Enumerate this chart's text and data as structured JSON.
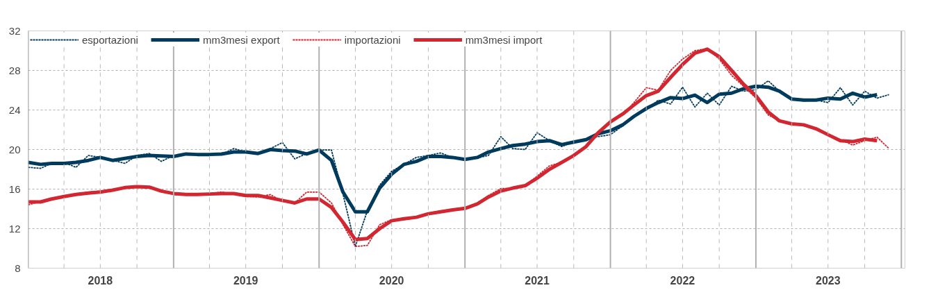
{
  "chart_data": {
    "type": "line",
    "x": [
      "2018-01",
      "2018-02",
      "2018-03",
      "2018-04",
      "2018-05",
      "2018-06",
      "2018-07",
      "2018-08",
      "2018-09",
      "2018-10",
      "2018-11",
      "2018-12",
      "2019-01",
      "2019-02",
      "2019-03",
      "2019-04",
      "2019-05",
      "2019-06",
      "2019-07",
      "2019-08",
      "2019-09",
      "2019-10",
      "2019-11",
      "2019-12",
      "2020-01",
      "2020-02",
      "2020-03",
      "2020-04",
      "2020-05",
      "2020-06",
      "2020-07",
      "2020-08",
      "2020-09",
      "2020-10",
      "2020-11",
      "2020-12",
      "2021-01",
      "2021-02",
      "2021-03",
      "2021-04",
      "2021-05",
      "2021-06",
      "2021-07",
      "2021-08",
      "2021-09",
      "2021-10",
      "2021-11",
      "2021-12",
      "2022-01",
      "2022-02",
      "2022-03",
      "2022-04",
      "2022-05",
      "2022-06",
      "2022-07",
      "2022-08",
      "2022-09",
      "2022-10",
      "2022-11",
      "2022-12",
      "2023-01",
      "2023-02",
      "2023-03",
      "2023-04",
      "2023-05",
      "2023-06",
      "2023-07",
      "2023-08",
      "2023-09",
      "2023-10",
      "2023-11",
      "2023-12"
    ],
    "series": [
      {
        "name": "esportazioni",
        "color": "#003a5c",
        "line_style": "dashed",
        "values": [
          18.2,
          18.1,
          18.6,
          18.7,
          18.2,
          19.4,
          19.2,
          18.9,
          18.6,
          19.4,
          19.6,
          18.8,
          19.4,
          19.5,
          19.45,
          19.45,
          19.5,
          20.1,
          19.75,
          19.6,
          20.1,
          20.7,
          19.05,
          19.6,
          19.95,
          19.95,
          15.5,
          10.2,
          13.8,
          16.4,
          17.8,
          18.5,
          19.2,
          19.4,
          19.65,
          19.2,
          19.0,
          19.15,
          19.4,
          21.3,
          20.1,
          20.0,
          21.7,
          20.9,
          20.3,
          20.8,
          21.1,
          21.3,
          21.5,
          22.4,
          23.35,
          24.0,
          25.0,
          24.6,
          26.3,
          24.3,
          25.7,
          24.5,
          26.4,
          25.9,
          26.05,
          26.95,
          25.9,
          25.2,
          24.9,
          25.0,
          24.75,
          26.25,
          24.5,
          25.9,
          25.2,
          25.55
        ]
      },
      {
        "name": "mm3mesi export",
        "color": "#003a5c",
        "line_style": "solid",
        "values": [
          18.7,
          18.5,
          18.6,
          18.6,
          18.7,
          18.9,
          19.2,
          18.9,
          19.1,
          19.3,
          19.4,
          19.35,
          19.3,
          19.55,
          19.5,
          19.5,
          19.55,
          19.75,
          19.75,
          19.6,
          20.0,
          19.9,
          19.85,
          19.55,
          19.95,
          18.9,
          15.7,
          13.7,
          13.7,
          16.1,
          17.5,
          18.5,
          18.8,
          19.3,
          19.3,
          19.2,
          19.0,
          19.2,
          19.75,
          20.1,
          20.4,
          20.55,
          20.8,
          20.9,
          20.5,
          20.75,
          21.0,
          21.6,
          21.9,
          22.5,
          23.35,
          24.15,
          24.75,
          25.25,
          25.15,
          25.5,
          24.75,
          25.6,
          25.7,
          26.15,
          26.4,
          26.3,
          25.9,
          25.1,
          25.0,
          25.0,
          25.2,
          25.1,
          25.7,
          25.3,
          25.55,
          null
        ]
      },
      {
        "name": "importazioni",
        "color": "#d22630",
        "line_style": "dashed",
        "values": [
          14.4,
          14.75,
          15.0,
          15.2,
          15.45,
          15.7,
          15.8,
          15.9,
          16.25,
          16.25,
          16.15,
          15.9,
          15.45,
          15.4,
          15.45,
          15.55,
          15.7,
          15.5,
          15.25,
          15.2,
          15.45,
          14.75,
          14.6,
          15.7,
          15.7,
          14.6,
          12.4,
          10.2,
          10.3,
          12.4,
          12.9,
          12.9,
          13.1,
          13.55,
          13.8,
          13.9,
          14.05,
          14.6,
          15.35,
          16.05,
          16.1,
          16.35,
          17.3,
          18.35,
          18.7,
          19.5,
          20.3,
          21.7,
          22.8,
          23.5,
          24.75,
          26.25,
          26.0,
          28.0,
          29.15,
          30.0,
          30.2,
          29.15,
          27.5,
          26.4,
          25.2,
          23.5,
          22.9,
          22.6,
          22.4,
          22.1,
          21.5,
          21.0,
          20.45,
          20.9,
          21.25,
          20.1
        ]
      },
      {
        "name": "mm3mesi import",
        "color": "#d22630",
        "line_style": "solid",
        "values": [
          14.7,
          14.7,
          15.0,
          15.25,
          15.45,
          15.6,
          15.7,
          15.9,
          16.15,
          16.25,
          16.2,
          15.8,
          15.55,
          15.45,
          15.45,
          15.5,
          15.55,
          15.55,
          15.35,
          15.35,
          15.1,
          14.85,
          14.6,
          15.0,
          15.0,
          14.15,
          12.65,
          10.9,
          11.0,
          12.0,
          12.8,
          13.0,
          13.15,
          13.5,
          13.7,
          13.9,
          14.05,
          14.5,
          15.2,
          15.8,
          16.1,
          16.35,
          17.1,
          18.0,
          18.7,
          19.4,
          20.3,
          21.7,
          22.8,
          23.6,
          24.5,
          25.45,
          25.9,
          27.3,
          28.6,
          29.75,
          30.15,
          29.4,
          28.0,
          26.6,
          25.45,
          23.8,
          22.9,
          22.6,
          22.5,
          22.1,
          21.5,
          20.9,
          20.8,
          21.05,
          20.9,
          null
        ]
      }
    ],
    "xlim": [
      "2018-01-01",
      "2024-01-10"
    ],
    "xticks": [
      {
        "value": "2018-01-01",
        "label": null
      },
      {
        "value": "2018-04-01",
        "label": null
      },
      {
        "value": "2018-07-01",
        "label": "2018"
      },
      {
        "value": "2018-10-01",
        "label": null
      },
      {
        "value": "2019-01-01",
        "label": null
      },
      {
        "value": "2019-04-01",
        "label": null
      },
      {
        "value": "2019-07-01",
        "label": "2019"
      },
      {
        "value": "2019-10-01",
        "label": null
      },
      {
        "value": "2020-01-01",
        "label": null
      },
      {
        "value": "2020-04-01",
        "label": null
      },
      {
        "value": "2020-07-01",
        "label": "2020"
      },
      {
        "value": "2020-10-01",
        "label": null
      },
      {
        "value": "2021-01-01",
        "label": null
      },
      {
        "value": "2021-04-01",
        "label": null
      },
      {
        "value": "2021-07-01",
        "label": "2021"
      },
      {
        "value": "2021-10-01",
        "label": null
      },
      {
        "value": "2022-01-01",
        "label": null
      },
      {
        "value": "2022-04-01",
        "label": null
      },
      {
        "value": "2022-07-01",
        "label": "2022"
      },
      {
        "value": "2022-10-01",
        "label": null
      },
      {
        "value": "2023-01-01",
        "label": null
      },
      {
        "value": "2023-04-01",
        "label": null
      },
      {
        "value": "2023-07-01",
        "label": "2023"
      },
      {
        "value": "2023-10-01",
        "label": null
      },
      {
        "value": "2024-01-01",
        "label": null
      }
    ],
    "ylim": [
      8,
      32
    ],
    "yticks": [
      8,
      12,
      16,
      20,
      24,
      28,
      32
    ],
    "grid": true,
    "legend": "top",
    "marker": "none"
  }
}
